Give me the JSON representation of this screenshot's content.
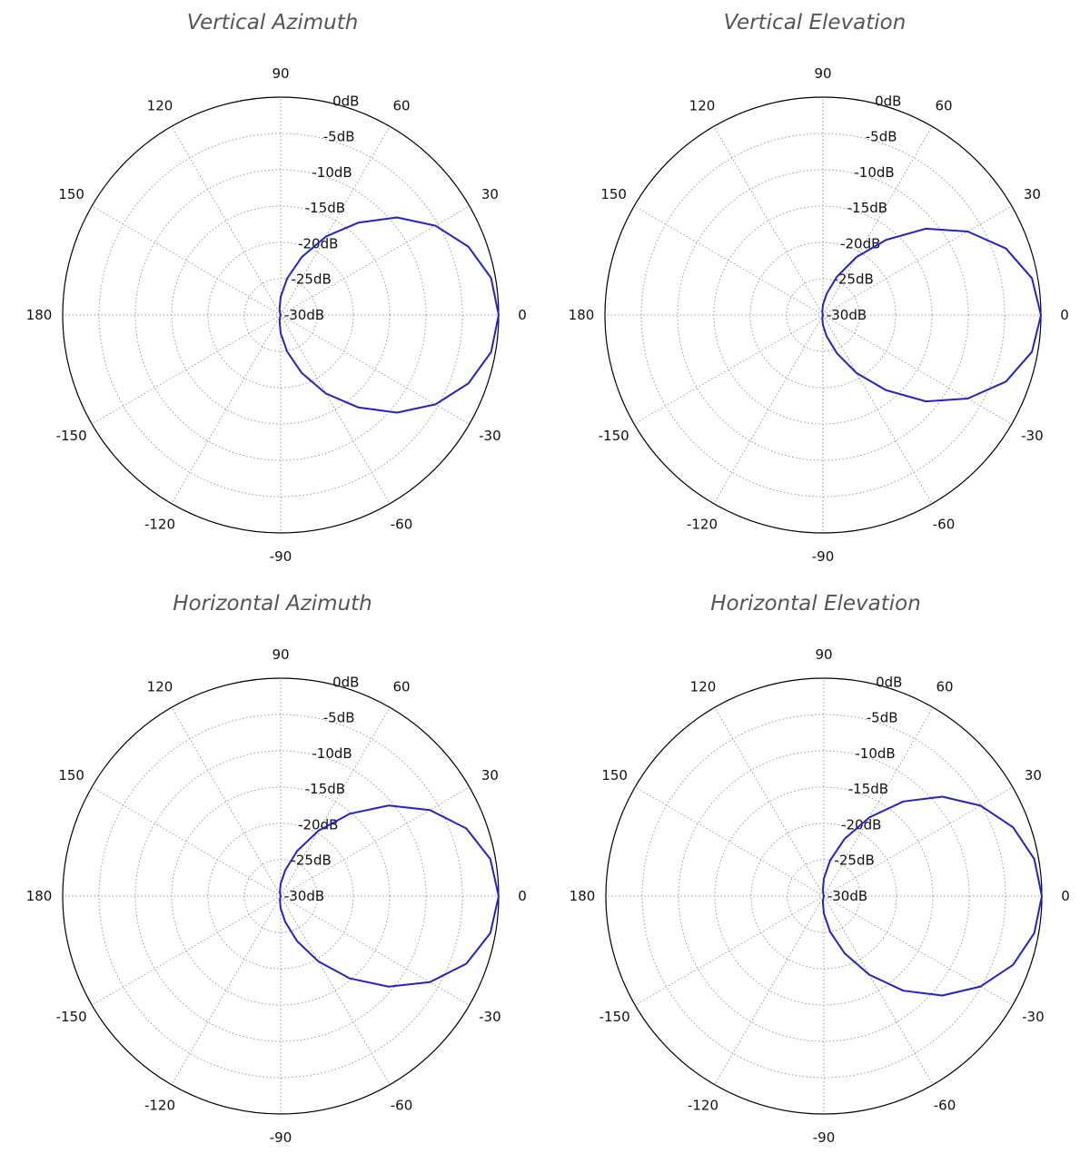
{
  "chart_data": [
    {
      "type": "polar",
      "title": "Vertical Azimuth",
      "angle_unit": "degrees",
      "radial_unit": "dB",
      "rlim": [
        -30,
        0
      ],
      "radial_ticks": [
        "0dB",
        "-5dB",
        "-10dB",
        "-15dB",
        "-20dB",
        "-25dB",
        "-30dB"
      ],
      "angle_ticks": [
        "0",
        "30",
        "60",
        "90",
        "120",
        "150",
        "180",
        "-150",
        "-120",
        "-90",
        "-60",
        "-30"
      ],
      "grid": true,
      "series": [
        {
          "color": "#2222cc",
          "theta": [
            0,
            10,
            20,
            30,
            40,
            50,
            60,
            70,
            80,
            90,
            100,
            110,
            120,
            130,
            140,
            150,
            160,
            170,
            180,
            190,
            200,
            210,
            220,
            230,
            240,
            250,
            260,
            270,
            280,
            290,
            300,
            310,
            320,
            330,
            340,
            350,
            360
          ],
          "r": [
            0.0,
            -0.6,
            -2.5,
            -5.4,
            -9.1,
            -13.4,
            -17.5,
            -21.5,
            -24.9,
            -27.5,
            -29.1,
            -29.8,
            -30.0,
            -30.0,
            -30.0,
            -30.0,
            -30.0,
            -30.0,
            -30.0,
            -30.0,
            -30.0,
            -30.0,
            -30.0,
            -30.0,
            -30.0,
            -29.8,
            -29.1,
            -27.5,
            -24.9,
            -21.5,
            -17.5,
            -13.4,
            -9.1,
            -5.4,
            -2.5,
            -0.6,
            0.0
          ]
        }
      ]
    },
    {
      "type": "polar",
      "title": "Vertical Elevation",
      "angle_unit": "degrees",
      "radial_unit": "dB",
      "rlim": [
        -30,
        0
      ],
      "radial_ticks": [
        "0dB",
        "-5dB",
        "-10dB",
        "-15dB",
        "-20dB",
        "-25dB",
        "-30dB"
      ],
      "angle_ticks": [
        "0",
        "30",
        "60",
        "90",
        "120",
        "150",
        "180",
        "-150",
        "-120",
        "-90",
        "-60",
        "-30"
      ],
      "grid": true,
      "series": [
        {
          "color": "#2222cc",
          "theta": [
            0,
            10,
            20,
            30,
            40,
            50,
            60,
            70,
            80,
            90,
            100,
            110,
            120,
            130,
            140,
            150,
            160,
            170,
            180,
            190,
            200,
            210,
            220,
            230,
            240,
            250,
            260,
            270,
            280,
            290,
            300,
            310,
            320,
            330,
            340,
            350,
            360
          ],
          "r": [
            0.0,
            -0.8,
            -3.2,
            -7.0,
            -11.5,
            -16.5,
            -20.8,
            -24.4,
            -27.0,
            -28.6,
            -29.5,
            -29.9,
            -30.0,
            -30.0,
            -30.0,
            -30.0,
            -30.0,
            -30.0,
            -30.0,
            -30.0,
            -30.0,
            -30.0,
            -30.0,
            -30.0,
            -30.0,
            -29.9,
            -29.5,
            -28.6,
            -27.0,
            -24.4,
            -20.8,
            -16.5,
            -11.5,
            -7.0,
            -3.2,
            -0.8,
            0.0
          ]
        }
      ]
    },
    {
      "type": "polar",
      "title": "Horizontal Azimuth",
      "angle_unit": "degrees",
      "radial_unit": "dB",
      "rlim": [
        -30,
        0
      ],
      "radial_ticks": [
        "0dB",
        "-5dB",
        "-10dB",
        "-15dB",
        "-20dB",
        "-25dB",
        "-30dB"
      ],
      "angle_ticks": [
        "0",
        "30",
        "60",
        "90",
        "120",
        "150",
        "180",
        "-150",
        "-120",
        "-90",
        "-60",
        "-30"
      ],
      "grid": true,
      "series": [
        {
          "color": "#2222cc",
          "theta": [
            0,
            10,
            20,
            30,
            40,
            50,
            60,
            70,
            80,
            90,
            100,
            110,
            120,
            130,
            140,
            150,
            160,
            170,
            180,
            190,
            200,
            210,
            220,
            230,
            240,
            250,
            260,
            270,
            280,
            290,
            300,
            310,
            320,
            330,
            340,
            350,
            360
          ],
          "r": [
            0.0,
            -0.7,
            -2.8,
            -6.3,
            -10.6,
            -15.2,
            -19.6,
            -23.4,
            -26.4,
            -28.3,
            -29.4,
            -29.9,
            -30.0,
            -30.0,
            -30.0,
            -30.0,
            -30.0,
            -30.0,
            -30.0,
            -30.0,
            -30.0,
            -30.0,
            -30.0,
            -30.0,
            -30.0,
            -29.9,
            -29.4,
            -28.3,
            -26.4,
            -23.4,
            -19.6,
            -15.2,
            -10.6,
            -6.3,
            -2.8,
            -0.7,
            0.0
          ]
        }
      ]
    },
    {
      "type": "polar",
      "title": "Horizontal Elevation",
      "angle_unit": "degrees",
      "radial_unit": "dB",
      "rlim": [
        -30,
        0
      ],
      "radial_ticks": [
        "0dB",
        "-5dB",
        "-10dB",
        "-15dB",
        "-20dB",
        "-25dB",
        "-30dB"
      ],
      "angle_ticks": [
        "0",
        "30",
        "60",
        "90",
        "120",
        "150",
        "180",
        "-150",
        "-120",
        "-90",
        "-60",
        "-30"
      ],
      "grid": true,
      "series": [
        {
          "color": "#2222cc",
          "theta": [
            0,
            10,
            20,
            30,
            40,
            50,
            60,
            70,
            80,
            90,
            100,
            110,
            120,
            130,
            140,
            150,
            160,
            170,
            180,
            190,
            200,
            210,
            220,
            230,
            240,
            250,
            260,
            270,
            280,
            290,
            300,
            310,
            320,
            330,
            340,
            350,
            360
          ],
          "r": [
            0.0,
            -0.6,
            -2.3,
            -5.1,
            -8.7,
            -13.0,
            -17.5,
            -21.6,
            -25.0,
            -27.6,
            -29.2,
            -29.9,
            -30.0,
            -30.0,
            -30.0,
            -30.0,
            -30.0,
            -30.0,
            -30.0,
            -30.0,
            -30.0,
            -30.0,
            -30.0,
            -30.0,
            -30.0,
            -29.9,
            -29.2,
            -27.6,
            -25.0,
            -21.6,
            -17.5,
            -13.0,
            -8.7,
            -5.1,
            -2.3,
            -0.6,
            0.0
          ]
        }
      ]
    }
  ]
}
